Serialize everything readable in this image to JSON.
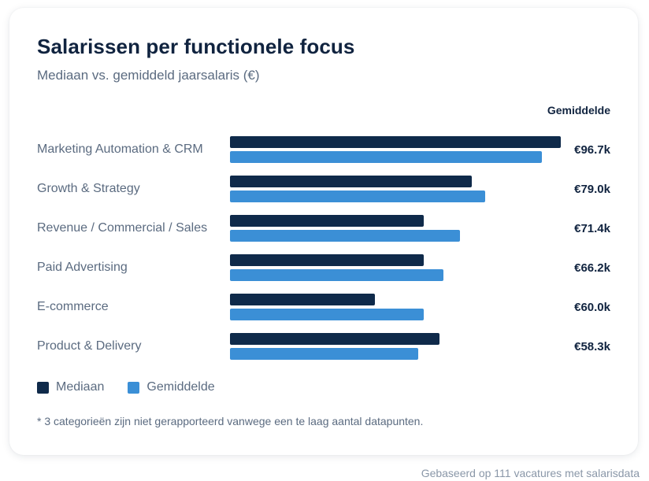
{
  "chart_data": {
    "type": "bar",
    "orientation": "horizontal",
    "title": "Salarissen per functionele focus",
    "subtitle": "Mediaan vs. gemiddeld jaarsalaris (€)",
    "value_column_header": "Gemiddelde",
    "categories": [
      "Marketing Automation & CRM",
      "Growth & Strategy",
      "Revenue / Commercial / Sales",
      "Paid Advertising",
      "E-commerce",
      "Product & Delivery"
    ],
    "series": [
      {
        "name": "Mediaan",
        "color": "#0f2a4a",
        "values": [
          102.5,
          75.0,
          60.0,
          60.0,
          45.0,
          65.0
        ]
      },
      {
        "name": "Gemiddelde",
        "color": "#3b8fd6",
        "values": [
          96.7,
          79.0,
          71.4,
          66.2,
          60.0,
          58.3
        ]
      }
    ],
    "value_labels": [
      "€96.7k",
      "€79.0k",
      "€71.4k",
      "€66.2k",
      "€60.0k",
      "€58.3k"
    ],
    "unit": "k€",
    "xlim": [
      0,
      105
    ],
    "grid": false,
    "legend_position": "bottom-left",
    "footnote": "* 3 categorieën zijn niet gerapporteerd vanwege een te laag aantal datapunten.",
    "source": "Gebaseerd op 111 vacatures met salarisdata"
  }
}
